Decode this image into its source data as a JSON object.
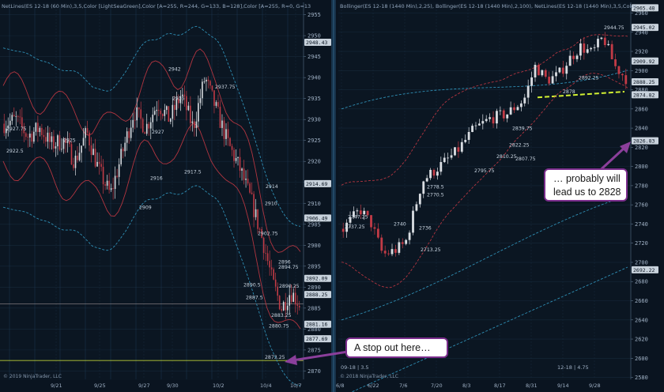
{
  "colors": {
    "background": "#0a1420",
    "bull_candle": "#d9dde2",
    "bear_candle": "#c23b46",
    "teal_band": "#2f8fb5",
    "red_band": "#b23540",
    "stop_line": "#d8ef3a",
    "support_line": "#d2f032",
    "callout_border": "#7b2d8c",
    "arrow": "#8b3f9b"
  },
  "chart_data": [
    {
      "type": "candlestick",
      "title": "NetLines(ES 12-18 (60 Min),3,5,Color [LightSeaGreen],Color [A=255, R=244, G=133, B=128],Color [A=255, R=0, G=13",
      "ylim": [
        2868,
        2957
      ],
      "y_ticks": [
        2870,
        2875,
        2880,
        2885,
        2890,
        2895,
        2900,
        2905,
        2910,
        2915,
        2920,
        2925,
        2930,
        2935,
        2940,
        2945,
        2950,
        2955
      ],
      "x_tick_labels": [
        "9/21",
        "9/25",
        "9/27",
        "9/30",
        "10/2",
        "10/4",
        "10/7"
      ],
      "price_tags": [
        {
          "value": 2948.43,
          "label": "2948.43"
        },
        {
          "value": 2914.69,
          "label": "2914.69"
        },
        {
          "value": 2906.49,
          "label": "2906.49"
        },
        {
          "value": 2892.09,
          "label": "2892.09"
        },
        {
          "value": 2888.25,
          "label": "2888.25"
        },
        {
          "value": 2881.16,
          "label": "2881.16"
        },
        {
          "value": 2877.69,
          "label": "2877.69"
        }
      ],
      "annotations": [
        {
          "value": 2942,
          "label": "2942"
        },
        {
          "value": 2937.75,
          "label": "2937.75"
        },
        {
          "value": 2935,
          "label": "2935"
        },
        {
          "value": 2927.75,
          "label": "2927.75"
        },
        {
          "value": 2927,
          "label": "2927"
        },
        {
          "value": 2925,
          "label": "2925"
        },
        {
          "value": 2922.5,
          "label": "2922.5"
        },
        {
          "value": 2917.5,
          "label": "2917.5"
        },
        {
          "value": 2916,
          "label": "2916"
        },
        {
          "value": 2910,
          "label": "2910"
        },
        {
          "value": 2914,
          "label": "2914"
        },
        {
          "value": 2909,
          "label": "2909"
        },
        {
          "value": 2902.75,
          "label": "2902.75"
        },
        {
          "value": 2896,
          "label": "2896"
        },
        {
          "value": 2894.75,
          "label": "2894.75"
        },
        {
          "value": 2890.25,
          "label": "2890.25"
        },
        {
          "value": 2890.5,
          "label": "2890.5"
        },
        {
          "value": 2887.5,
          "label": "2887.5"
        },
        {
          "value": 2883.25,
          "label": "2883.25"
        },
        {
          "value": 2880.75,
          "label": "2880.75"
        },
        {
          "value": 2873.25,
          "label": "2873.25"
        }
      ],
      "stop_level": 2872.5,
      "legend": "",
      "copyright": "© 2019 NinjaTrader, LLC"
    },
    {
      "type": "candlestick",
      "title": "Bollinger(ES 12-18 (1440 Min),2,25), Bollinger(ES 12-18 (1440 Min),2,100), NetLines(ES 12-18 (1440 Min),3,5,Color",
      "ylim": [
        2578,
        2967
      ],
      "y_ticks": [
        2580,
        2600,
        2620,
        2640,
        2660,
        2680,
        2700,
        2720,
        2740,
        2760,
        2780,
        2800,
        2820,
        2840,
        2860,
        2880,
        2900,
        2920,
        2940,
        2960
      ],
      "x_tick_labels": [
        "6/8",
        "6/22",
        "7/6",
        "7/20",
        "8/3",
        "8/17",
        "8/31",
        "9/14",
        "9/28"
      ],
      "price_tags": [
        {
          "value": 2965.48,
          "label": "2965.48"
        },
        {
          "value": 2945.02,
          "label": "2945.02"
        },
        {
          "value": 2909.92,
          "label": "2909.92"
        },
        {
          "value": 2888.25,
          "label": "2888.25"
        },
        {
          "value": 2874.82,
          "label": "2874.82"
        },
        {
          "value": 2826.83,
          "label": "2826.83"
        },
        {
          "value": 2692.22,
          "label": "2692.22"
        }
      ],
      "annotations": [
        {
          "value": 2944.75,
          "label": "2944.75"
        },
        {
          "value": 2892.25,
          "label": "2892.25"
        },
        {
          "value": 2878,
          "label": "2878"
        },
        {
          "value": 2839.75,
          "label": "2839.75"
        },
        {
          "value": 2822.25,
          "label": "2822.25"
        },
        {
          "value": 2810.25,
          "label": "2810.25"
        },
        {
          "value": 2807.75,
          "label": "2807.75"
        },
        {
          "value": 2795.75,
          "label": "2795.75"
        },
        {
          "value": 2778.5,
          "label": "2778.5"
        },
        {
          "value": 2770.5,
          "label": "2770.5"
        },
        {
          "value": 2747.25,
          "label": "2747.25"
        },
        {
          "value": 2737.25,
          "label": "2737.25"
        },
        {
          "value": 2740,
          "label": "2740"
        },
        {
          "value": 2736,
          "label": "2736"
        },
        {
          "value": 2713.25,
          "label": "2713.25"
        }
      ],
      "support_level": 2872,
      "bottom_labels": [
        "09-18 | 3.5",
        "12-18 | 4.75"
      ],
      "copyright": "© 2018 NinjaTrader, LLC"
    }
  ],
  "callouts": {
    "stop": "A stop out here…",
    "target_line1": "… probably will",
    "target_line2": "lead us to 2828"
  }
}
